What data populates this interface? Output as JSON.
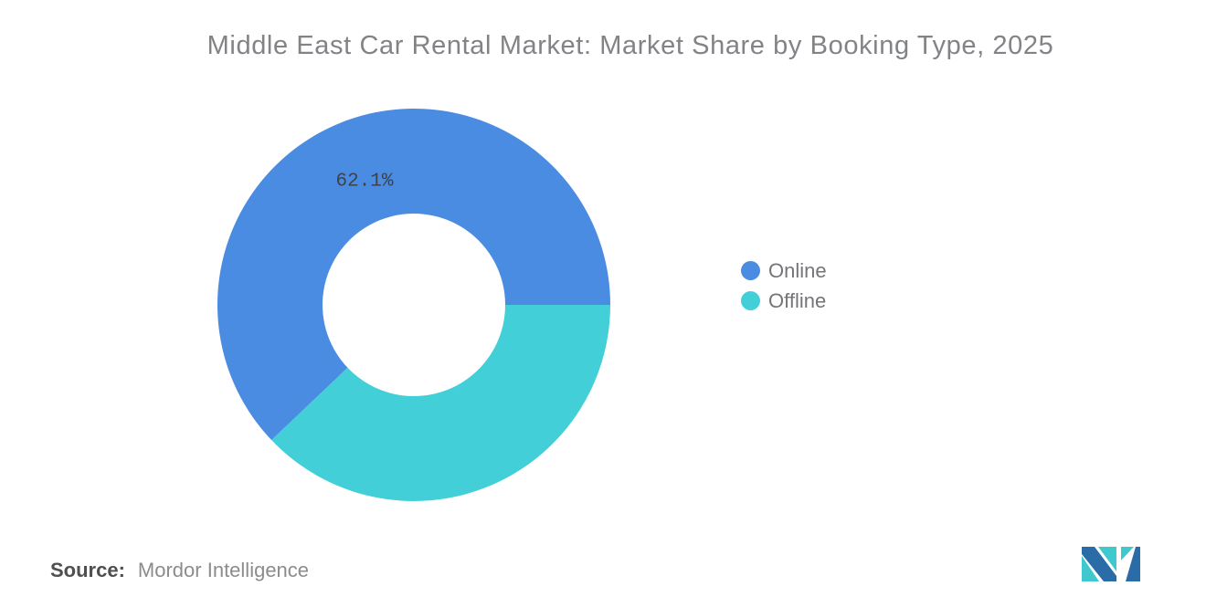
{
  "header": {
    "title": "Middle East Car Rental Market: Market Share by Booking Type, 2025"
  },
  "chart_data": {
    "type": "pie",
    "subtype": "donut",
    "title": "Middle East Car Rental Market: Market Share by Booking Type, 2025",
    "series": [
      {
        "name": "Online",
        "value": 62.1,
        "color": "#4A8CE2",
        "label": "62.1%"
      },
      {
        "name": "Offline",
        "value": 37.9,
        "color": "#43CFD8",
        "label": ""
      }
    ],
    "legend_position": "right",
    "start_angle_deg": 0,
    "direction": "counterclockwise",
    "inner_radius_ratio": 0.465,
    "data_label_color": "#3E4247",
    "background": "#FFFFFF"
  },
  "source": {
    "prefix": "Source:",
    "text": "Mordor Intelligence"
  },
  "logo": {
    "name": "mordor-intelligence-logo",
    "teal": "#3FC8CE",
    "blue": "#2A6CA8"
  }
}
